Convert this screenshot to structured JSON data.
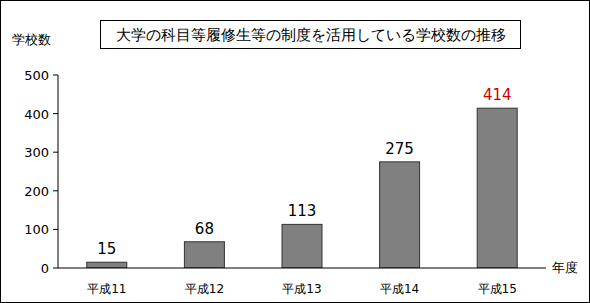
{
  "chart_data": {
    "type": "bar",
    "title": "大学の科目等履修生等の制度を活用している学校数の推移",
    "y_label": "学校数",
    "x_label": "年度",
    "categories": [
      "平成11",
      "平成12",
      "平成13",
      "平成14",
      "平成15"
    ],
    "values": [
      15,
      68,
      113,
      275,
      414
    ],
    "color": "#808080",
    "ylim": [
      0,
      500
    ],
    "yticks": [
      0,
      100,
      200,
      300,
      400,
      500
    ],
    "grid": false,
    "data_labels": true
  }
}
